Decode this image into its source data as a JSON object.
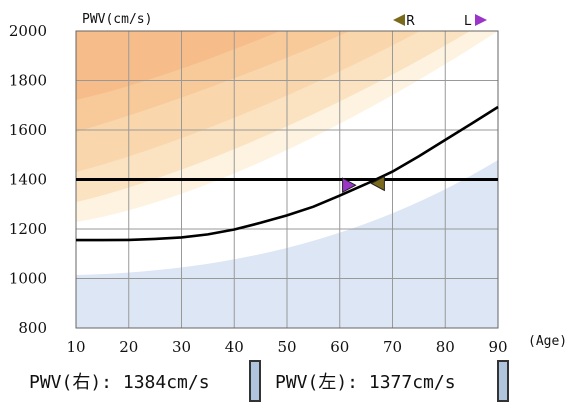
{
  "chart_data": {
    "type": "line",
    "ylabel": "PWV(cm/s)",
    "xlabel": "(Age)",
    "xlim": [
      10,
      90
    ],
    "ylim": [
      800,
      2000
    ],
    "x_ticks": [
      10,
      20,
      30,
      40,
      50,
      60,
      70,
      80,
      90
    ],
    "y_ticks": [
      800,
      1000,
      1200,
      1400,
      1600,
      1800,
      2000
    ],
    "grid": true,
    "series": [
      {
        "x": [
          10,
          15,
          20,
          25,
          30,
          35,
          40,
          45,
          50,
          55,
          60,
          65,
          70,
          75,
          80,
          85,
          90
        ],
        "values": [
          1155,
          1155,
          1156,
          1160,
          1166,
          1178,
          1198,
          1225,
          1255,
          1290,
          1335,
          1382,
          1432,
          1494,
          1560,
          1626,
          1693
        ]
      }
    ],
    "reference_line": 1400,
    "markers": [
      {
        "side": "R",
        "label": "R",
        "age": 66,
        "pwv": 1384,
        "direction": "left",
        "color": "#7a6a1e"
      },
      {
        "side": "L",
        "label": "L",
        "age": 63,
        "pwv": 1377,
        "direction": "right",
        "color": "#9b35c8"
      }
    ]
  },
  "readouts": {
    "right": "PWV(右): 1384cm/s",
    "left": "PWV(左): 1377cm/s"
  },
  "colors": {
    "grid": "#999999",
    "curve": "#000000",
    "marker_right": "#7a6a1e",
    "marker_left": "#9b35c8",
    "band_blue": "#dce6f5",
    "band_orange_dark": "#f6bd8a",
    "band_orange_light": "#fbe2c0",
    "swatch": "#b0c4de"
  }
}
